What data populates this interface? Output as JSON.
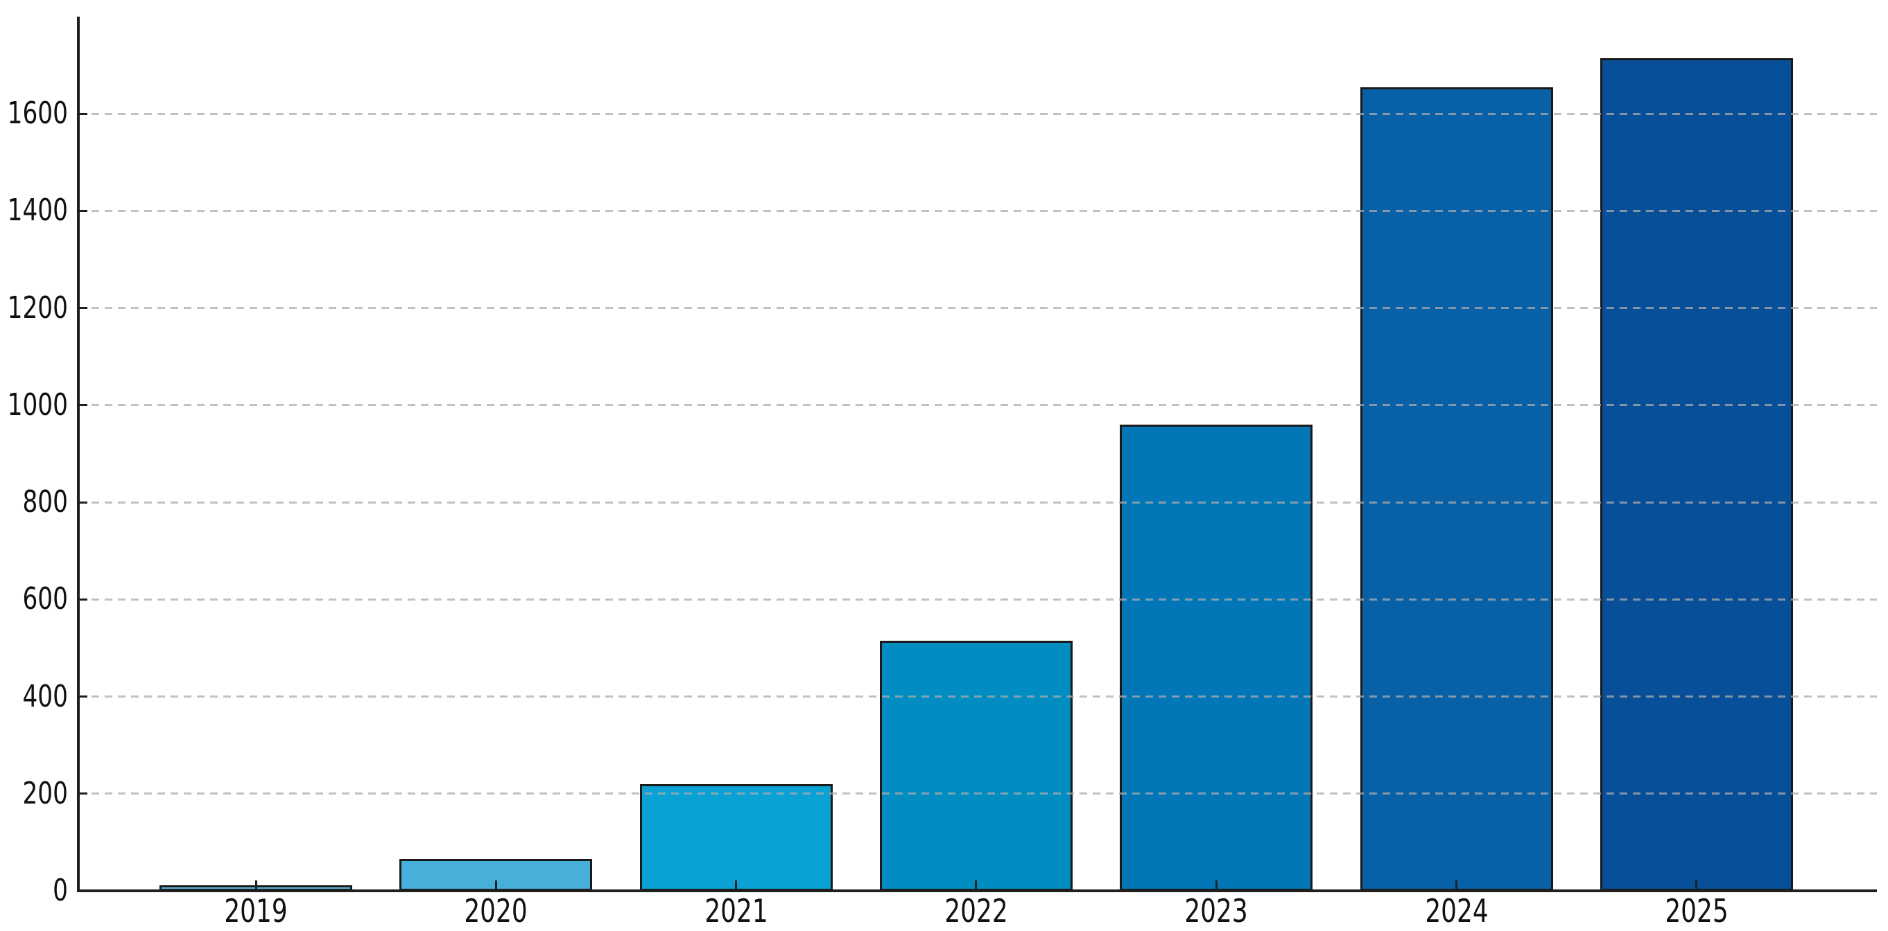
{
  "chart_data": {
    "type": "bar",
    "title": "",
    "xlabel": "",
    "ylabel": "",
    "categories": [
      "2019",
      "2020",
      "2021",
      "2022",
      "2023",
      "2024",
      "2025"
    ],
    "values": [
      12,
      65,
      220,
      515,
      960,
      1655,
      1715
    ],
    "bar_colors": [
      "#5cb9de",
      "#47b0da",
      "#0aa2d4",
      "#028dc2",
      "#0376b8",
      "#0861a7",
      "#074f98"
    ],
    "bar_edge_color": "#1a1a1a",
    "ylim": [
      0,
      1800
    ],
    "yticks": [
      0,
      200,
      400,
      600,
      800,
      1000,
      1200,
      1400,
      1600
    ],
    "y_tick_labels": [
      "0",
      "200",
      "400",
      "600",
      "800",
      "1000",
      "1200",
      "1400",
      "1600"
    ],
    "grid": {
      "axis": "y",
      "style": "dashed",
      "color": "#acacac",
      "drawn_over_bars": true
    },
    "legend_position": "none",
    "spines": {
      "left": true,
      "bottom": true,
      "top": false,
      "right": false
    },
    "background_color": "#ffffff"
  }
}
